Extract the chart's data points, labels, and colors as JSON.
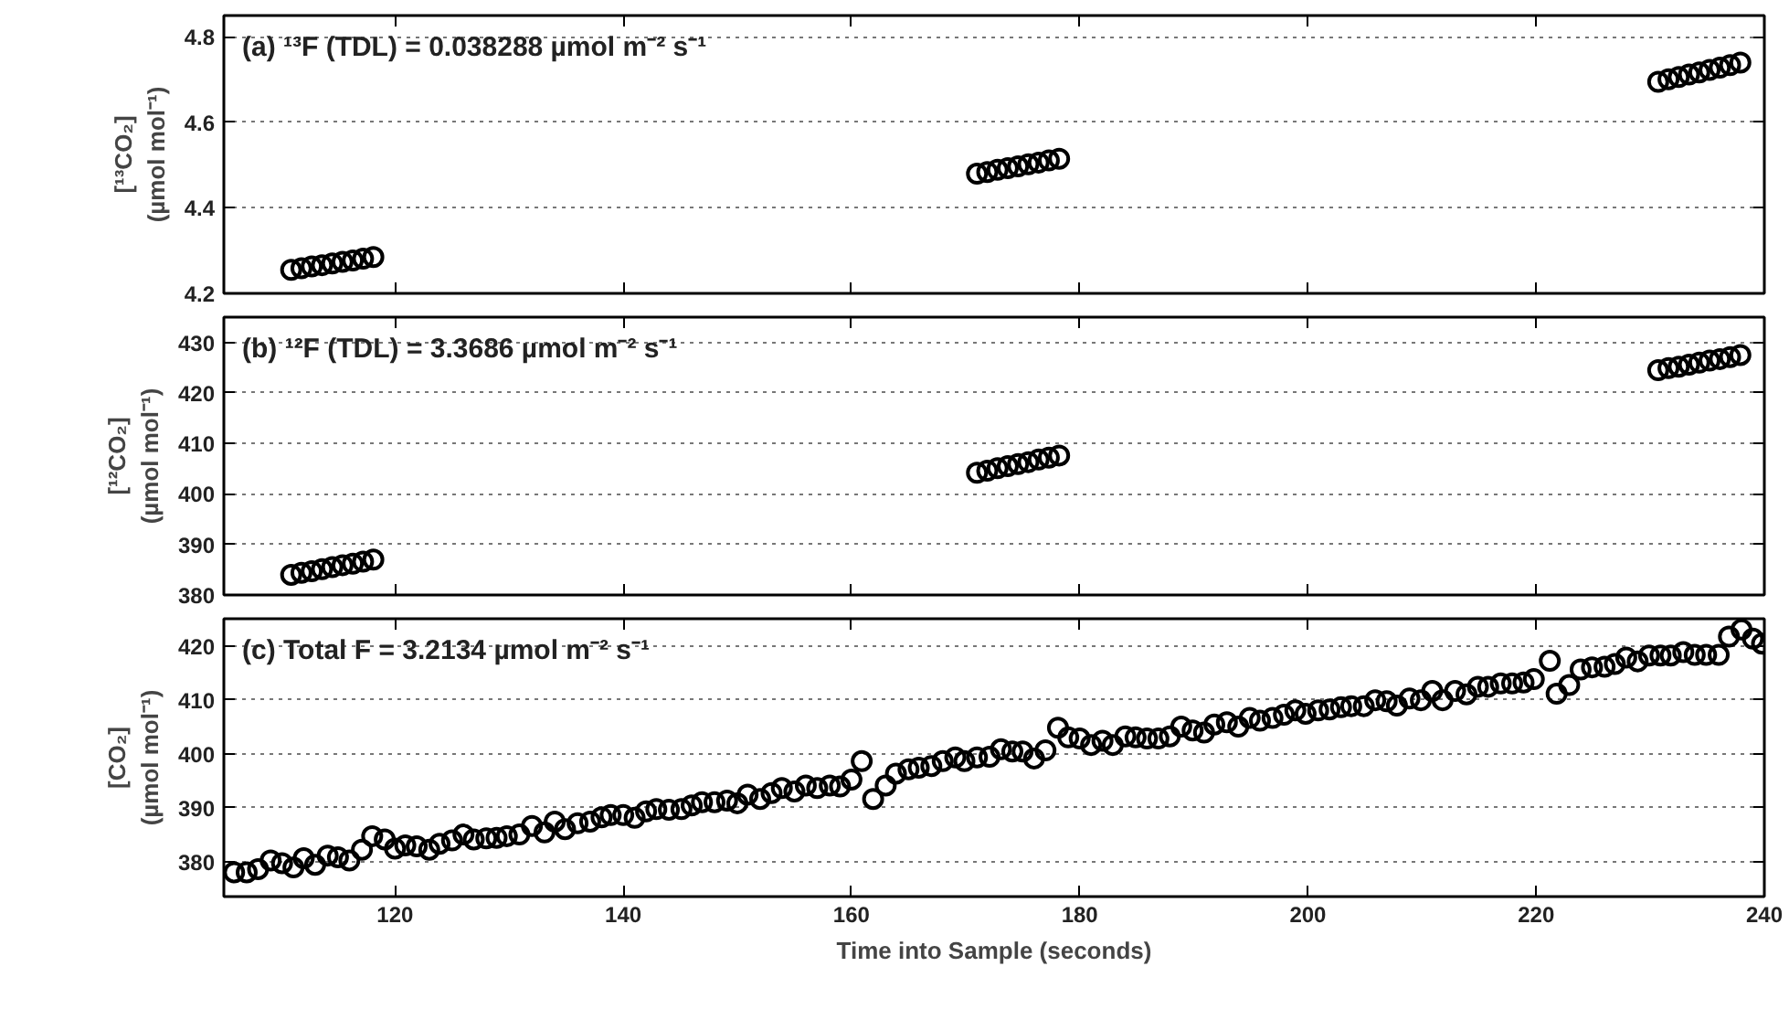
{
  "chart_data": [
    {
      "type": "scatter",
      "ylabel": "[¹³CO₂]\n(µmol mol⁻¹)",
      "annotations": [
        "(a) ¹³F (TDL) = 0.038288 µmol m⁻² s⁻¹"
      ],
      "xlim": [
        105,
        240
      ],
      "xticks": [
        120,
        140,
        160,
        180,
        200,
        220,
        240
      ],
      "ylim": [
        4.2,
        4.85
      ],
      "yticks": [
        4.2,
        4.4,
        4.6,
        4.8
      ],
      "grid": "y",
      "marker": "circle",
      "tick_labels": "y",
      "series": [
        {
          "color": "#000000",
          "x": [
            110.9,
            111.8,
            112.7,
            113.6,
            114.5,
            115.4,
            116.3,
            117.2,
            118.1,
            171.0,
            171.9,
            172.8,
            173.7,
            174.6,
            175.5,
            176.4,
            177.3,
            178.2,
            230.7,
            231.6,
            232.5,
            233.4,
            234.3,
            235.2,
            236.1,
            237.0,
            237.9
          ],
          "values": [
            4.255,
            4.259,
            4.263,
            4.266,
            4.27,
            4.274,
            4.277,
            4.281,
            4.285,
            4.48,
            4.484,
            4.489,
            4.493,
            4.497,
            4.502,
            4.506,
            4.511,
            4.515,
            4.695,
            4.701,
            4.706,
            4.712,
            4.717,
            4.723,
            4.728,
            4.734,
            4.74
          ]
        }
      ]
    },
    {
      "type": "scatter",
      "ylabel": "[¹²CO₂]\n(µmol mol⁻¹)",
      "annotations": [
        "(b) ¹²F (TDL) = 3.3686 µmol m⁻² s⁻¹"
      ],
      "xlim": [
        105,
        240
      ],
      "xticks": [
        120,
        140,
        160,
        180,
        200,
        220,
        240
      ],
      "ylim": [
        380,
        435
      ],
      "yticks": [
        380,
        390,
        400,
        410,
        420,
        430
      ],
      "grid": "y",
      "marker": "circle",
      "tick_labels": "y",
      "series": [
        {
          "color": "#000000",
          "x": [
            110.9,
            111.8,
            112.7,
            113.6,
            114.5,
            115.4,
            116.3,
            117.2,
            118.1,
            171.0,
            171.9,
            172.8,
            173.7,
            174.6,
            175.5,
            176.4,
            177.3,
            178.2,
            230.7,
            231.6,
            232.5,
            233.4,
            234.3,
            235.2,
            236.1,
            237.0,
            237.9
          ],
          "values": [
            384.0,
            384.4,
            384.7,
            385.1,
            385.5,
            385.9,
            386.2,
            386.6,
            387.0,
            404.2,
            404.6,
            405.1,
            405.5,
            405.9,
            406.3,
            406.8,
            407.2,
            407.6,
            424.5,
            424.9,
            425.2,
            425.6,
            426.0,
            426.4,
            426.7,
            427.1,
            427.5
          ]
        }
      ]
    },
    {
      "type": "scatter",
      "ylabel": "[CO₂]\n(µmol mol⁻¹)",
      "xlabel": "Time into Sample (seconds)",
      "annotations": [
        "(c) Total F = 3.2134 µmol m⁻² s⁻¹"
      ],
      "xlim": [
        105,
        240
      ],
      "xticks": [
        120,
        140,
        160,
        180,
        200,
        220,
        240
      ],
      "ylim": [
        373.5,
        425
      ],
      "yticks": [
        380,
        390,
        400,
        410,
        420
      ],
      "grid": "y",
      "marker": "circle",
      "series": [
        {
          "color": "#000000",
          "x": [
            105.9,
            107,
            108,
            109.1,
            110.1,
            111.1,
            112,
            113,
            114.1,
            115,
            116,
            117.1,
            118,
            119.1,
            120,
            120.9,
            121.9,
            123,
            123.9,
            125,
            126,
            126.9,
            128,
            128.9,
            129.8,
            130.9,
            132,
            133.1,
            134,
            134.9,
            136,
            137.1,
            138.1,
            138.9,
            140,
            141,
            142,
            142.9,
            144,
            145.1,
            146,
            146.9,
            148,
            149.1,
            150,
            150.9,
            152,
            153,
            153.9,
            155,
            156,
            157,
            158.1,
            159,
            160,
            160.9,
            161.9,
            163,
            163.9,
            165,
            165.9,
            167,
            168,
            169.1,
            169.9,
            171,
            172.1,
            173.1,
            174.1,
            175,
            176,
            177,
            178.1,
            179,
            180,
            181,
            182,
            182.9,
            184,
            184.9,
            185.9,
            186.9,
            187.9,
            188.9,
            189.9,
            190.9,
            191.8,
            192.9,
            193.9,
            194.9,
            195.8,
            196.9,
            197.9,
            198.9,
            199.8,
            200.9,
            201.9,
            202.9,
            203.8,
            204.9,
            205.9,
            206.9,
            207.8,
            208.9,
            209.9,
            210.9,
            211.8,
            212.9,
            213.9,
            214.9,
            215.8,
            216.9,
            217.9,
            218.9,
            219.8,
            221.2,
            221.8,
            222.9,
            223.9,
            224.9,
            226,
            226.9,
            227.9,
            228.9,
            229.9,
            230.9,
            231.8,
            232.9,
            233.9,
            234.9,
            236,
            236.9,
            238,
            239,
            239.8
          ],
          "values": [
            378.0,
            378.0,
            378.6,
            380.2,
            379.7,
            378.9,
            380.6,
            379.4,
            381.1,
            380.8,
            380.2,
            382.2,
            384.7,
            384.1,
            382.4,
            383.0,
            382.8,
            382.2,
            383.3,
            383.9,
            385.0,
            384.1,
            384.3,
            384.4,
            384.7,
            385.0,
            386.6,
            385.4,
            387.4,
            386.0,
            387.1,
            387.4,
            388.2,
            388.6,
            388.6,
            388.1,
            389.3,
            389.7,
            389.6,
            389.7,
            390.4,
            391.0,
            391.0,
            391.3,
            390.8,
            392.4,
            391.6,
            392.7,
            393.6,
            393.0,
            394.1,
            393.6,
            394.1,
            393.9,
            395.2,
            398.6,
            391.6,
            394.1,
            396.3,
            397.1,
            397.4,
            397.7,
            398.6,
            399.3,
            398.6,
            399.3,
            399.4,
            400.8,
            400.4,
            400.4,
            399.1,
            400.6,
            404.8,
            403.0,
            402.8,
            401.6,
            402.4,
            401.6,
            403.2,
            403.0,
            402.8,
            402.8,
            403.2,
            405.0,
            404.3,
            403.9,
            405.4,
            405.8,
            405.0,
            406.6,
            406.1,
            406.6,
            407.2,
            408.0,
            407.4,
            408.0,
            408.2,
            408.6,
            408.8,
            408.8,
            409.9,
            409.7,
            408.9,
            410.2,
            409.9,
            411.6,
            409.9,
            411.6,
            411.0,
            412.4,
            412.4,
            413.0,
            413.0,
            413.2,
            413.8,
            417.2,
            411.1,
            412.7,
            415.6,
            416.0,
            416.1,
            416.6,
            417.8,
            417.1,
            418.2,
            418.2,
            418.2,
            418.8,
            418.3,
            418.3,
            418.3,
            421.7,
            423.0,
            421.3,
            420.4
          ]
        }
      ]
    }
  ]
}
